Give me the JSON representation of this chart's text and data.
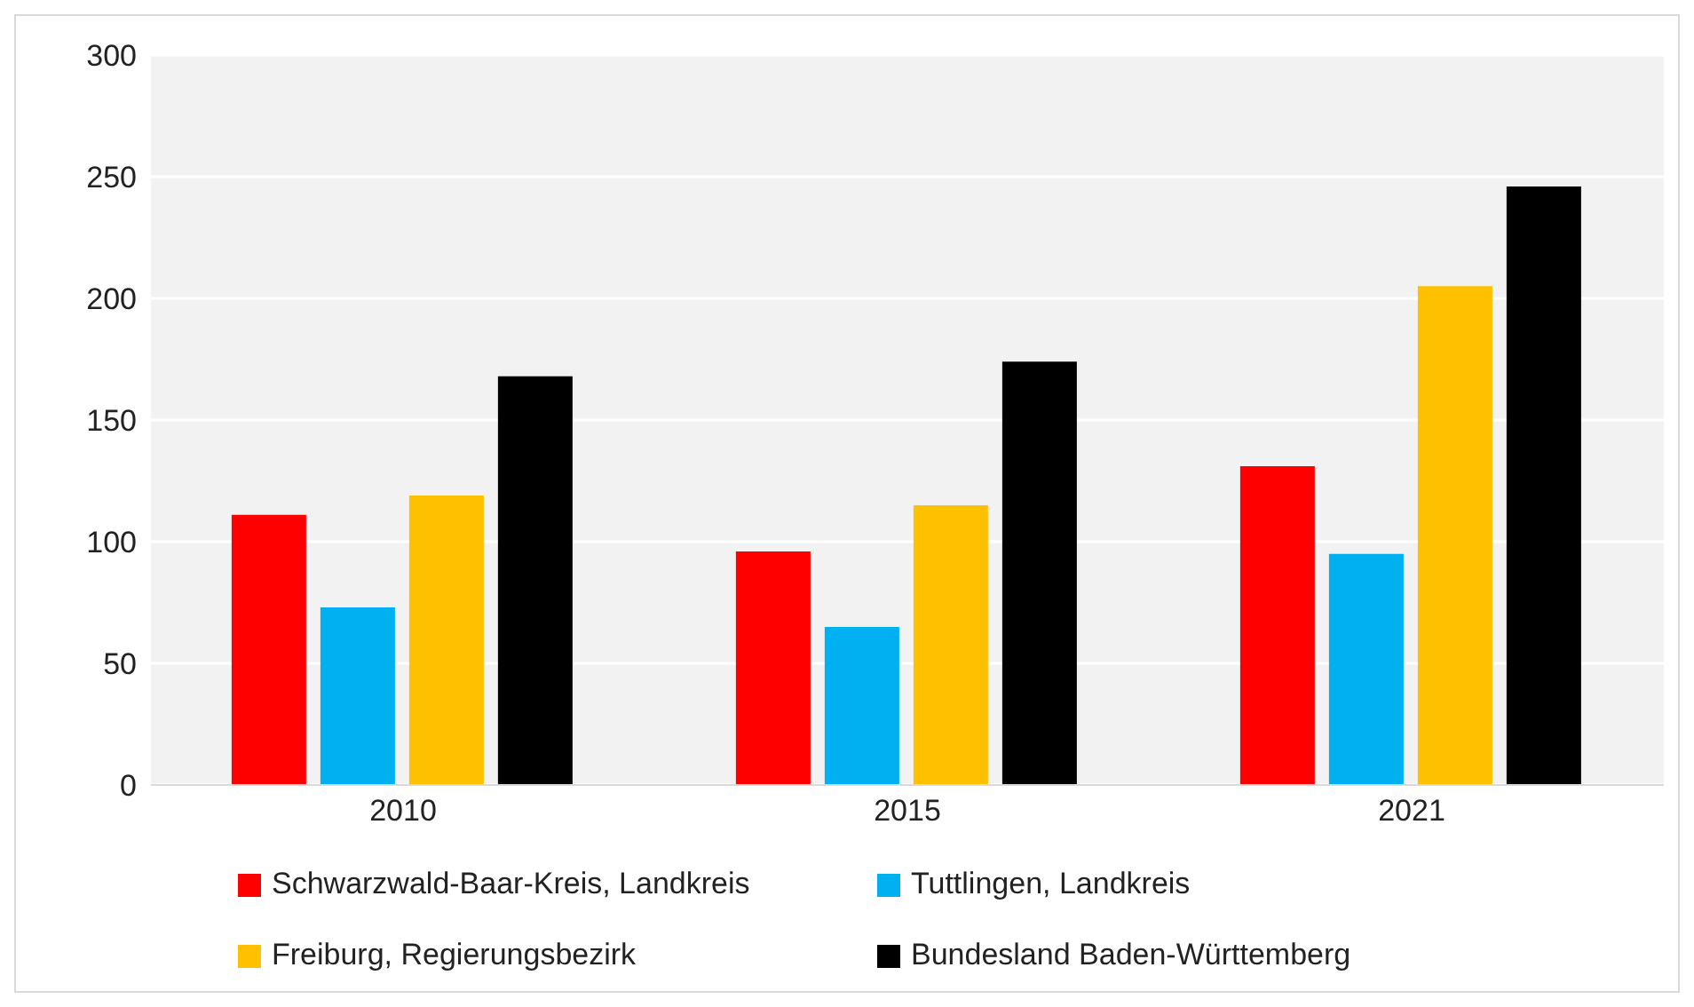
{
  "chart_data": {
    "type": "bar",
    "categories": [
      "2010",
      "2015",
      "2021"
    ],
    "series": [
      {
        "name": "Schwarzwald-Baar-Kreis, Landkreis",
        "color": "#ff0000",
        "values": [
          111,
          96,
          131
        ]
      },
      {
        "name": "Tuttlingen, Landkreis",
        "color": "#00b0f0",
        "values": [
          73,
          65,
          95
        ]
      },
      {
        "name": "Freiburg, Regierungsbezirk",
        "color": "#ffc000",
        "values": [
          119,
          115,
          205
        ]
      },
      {
        "name": "Bundesland Baden-Württemberg",
        "color": "#000000",
        "values": [
          168,
          174,
          246
        ]
      }
    ],
    "ylim": [
      0,
      300
    ],
    "yticks": [
      0,
      50,
      100,
      150,
      200,
      250,
      300
    ],
    "grid": "y",
    "legend": "bottom"
  }
}
